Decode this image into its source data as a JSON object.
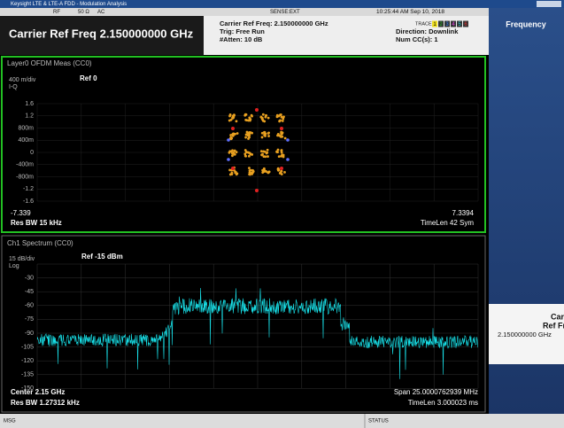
{
  "title_bar": {
    "title": "Keysight LTE & LTE-A FDD - Modulation Analysis"
  },
  "status_row": {
    "rf": "RF",
    "impedance": "50 Ω",
    "coupling": "AC",
    "sense": "SENSE:EXT",
    "timestamp": "10:25:44 AM Sep 10, 2018"
  },
  "header": {
    "measurement": "Carrier Ref Freq 2.150000000 GHz",
    "carrier": "Carrier Ref Freq: 2.150000000 GHz",
    "trigger": "Trig: Free Run",
    "atten": "#Atten: 10 dB",
    "trace_label": "TRACE",
    "traces": [
      "1",
      "2",
      "3",
      "4",
      "5",
      "6"
    ],
    "direction": "Direction: Downlink",
    "num_cc": "Num CC(s): 1"
  },
  "side_panel": {
    "title": "Frequency",
    "button": [
      "Carrier",
      "Ref Freq",
      "2.150000000 GHz"
    ]
  },
  "constellation": {
    "title": "Layer0 OFDM Meas (CC0)",
    "scale": "400 m/div",
    "ref": "Ref 0",
    "axis": "I-Q",
    "ylabels": [
      "1.6",
      "1.2",
      "800m",
      "400m",
      "0",
      "-400m",
      "-800m",
      "-1.2",
      "-1.6"
    ],
    "x_start": "-7.339",
    "x_stop": "7.3394",
    "res_bw": "Res BW 15 kHz",
    "time_len": "TimeLen 42  Sym"
  },
  "spectrum": {
    "title": "Ch1 Spectrum (CC0)",
    "scale": "15 dB/div",
    "ref": "Ref -15 dBm",
    "log": "Log",
    "ylabels": [
      "-30",
      "-45",
      "-60",
      "-75",
      "-90",
      "-105",
      "-120",
      "-135",
      "-150"
    ],
    "center": "Center 2.15 GHz",
    "span": "Span 25.0000762939 MHz",
    "res_bw": "Res BW 1.27312 kHz",
    "time_len": "TimeLen 3.000023 ms"
  },
  "footer": {
    "msg": "MSG",
    "status": "STATUS"
  }
}
